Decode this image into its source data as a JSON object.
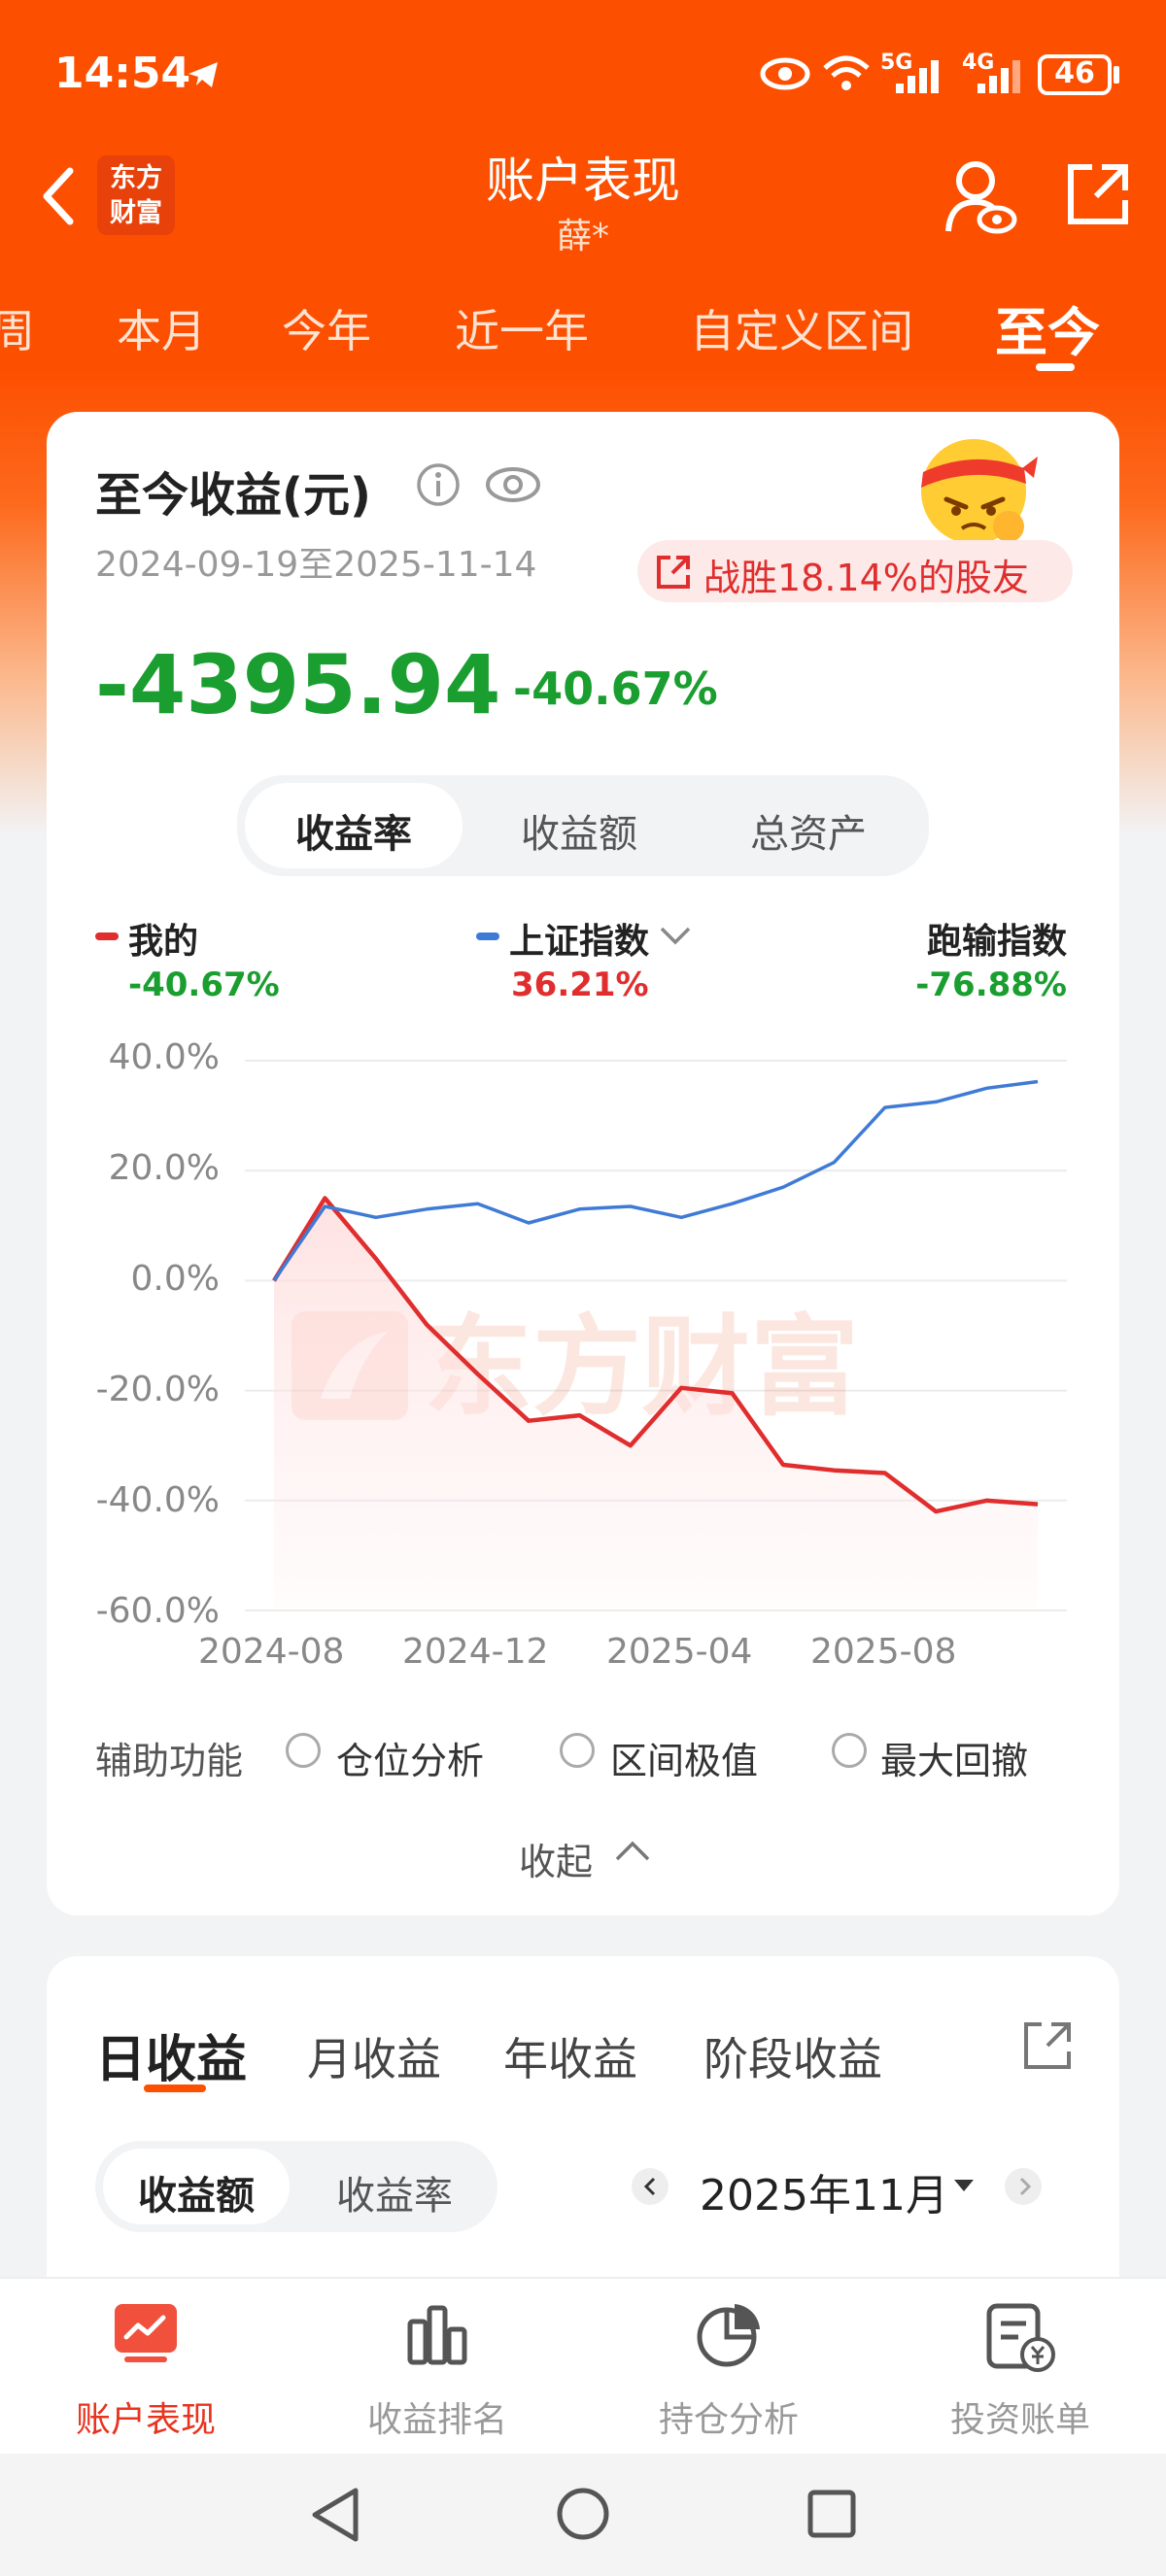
{
  "status_bar": {
    "time": "14:54",
    "network1": "5G",
    "network2": "4G",
    "battery": "46"
  },
  "header": {
    "back_logo": "东方\n财富",
    "title": "账户表现",
    "subtitle": "薛*"
  },
  "period_tabs": [
    "周",
    "本月",
    "今年",
    "近一年",
    "自定义区间",
    "至今"
  ],
  "summary": {
    "title": "至今收益(元)",
    "date_range": "2024-09-19至2025-11-14",
    "beat_badge": "战胜18.14%的股友",
    "amount": "-4395.94",
    "rate": "-40.67%"
  },
  "metric_tabs": [
    "收益率",
    "收益额",
    "总资产"
  ],
  "legend": {
    "mine": {
      "label": "我的",
      "value": "-40.67%"
    },
    "index": {
      "label": "上证指数",
      "value": "36.21%"
    },
    "beat": {
      "label": "跑输指数",
      "value": "-76.88%"
    }
  },
  "colors": {
    "brand": "#fd4f00",
    "mine": "#e02d2d",
    "index": "#3f7bd6",
    "green": "#1a9e2f",
    "red": "#e02d2d"
  },
  "watermark": "东方财富",
  "chart_data": {
    "type": "line",
    "x": [
      "2024-08",
      "2024-09",
      "2024-10",
      "2024-11",
      "2024-12",
      "2025-01",
      "2025-02",
      "2025-03",
      "2025-04",
      "2025-05",
      "2025-06",
      "2025-07",
      "2025-08",
      "2025-09",
      "2025-10",
      "2025-11"
    ],
    "xticks": [
      "2024-08",
      "2024-12",
      "2025-04",
      "2025-08"
    ],
    "yticks": [
      "40.0%",
      "20.0%",
      "0.0%",
      "-20.0%",
      "-40.0%",
      "-60.0%"
    ],
    "ylim": [
      -60,
      40
    ],
    "grid": true,
    "series": [
      {
        "name": "我的",
        "values": [
          0,
          15,
          4,
          -8,
          -17,
          -25.5,
          -24.5,
          -30,
          -19.5,
          -20.5,
          -33.5,
          -34.5,
          -35,
          -42,
          -40,
          -40.67
        ]
      },
      {
        "name": "上证指数",
        "values": [
          0,
          13.5,
          11.5,
          13,
          14,
          10.5,
          13,
          13.5,
          11.5,
          14,
          17,
          21.5,
          31.5,
          32.5,
          35,
          36.21
        ]
      }
    ]
  },
  "aux": {
    "label": "辅助功能",
    "options": [
      "仓位分析",
      "区间极值",
      "最大回撤"
    ]
  },
  "collapse_label": "收起",
  "income": {
    "tabs": [
      "日收益",
      "月收益",
      "年收益",
      "阶段收益"
    ],
    "toggle": [
      "收益额",
      "收益率"
    ],
    "month": "2025年11月"
  },
  "bottom_nav": [
    "账户表现",
    "收益排名",
    "持仓分析",
    "投资账单"
  ]
}
